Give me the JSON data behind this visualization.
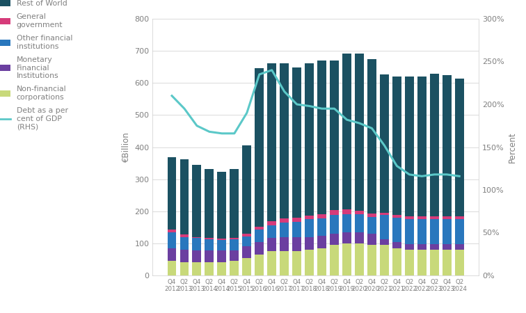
{
  "categories": [
    "2012 Q4",
    "2013 Q2",
    "2013 Q4",
    "2014 Q2",
    "2014 Q4",
    "2015 Q2",
    "2015 Q4",
    "2016 Q2",
    "2016 Q4",
    "2017 Q2",
    "2017 Q4",
    "2018 Q2",
    "2018 Q4",
    "2019 Q2",
    "2019 Q4",
    "2020 Q2",
    "2020 Q4",
    "2021 Q2",
    "2021 Q4",
    "2022 Q2",
    "2022 Q4",
    "2023 Q2",
    "2023 Q4",
    "2024 Q2"
  ],
  "nfc": [
    45,
    42,
    42,
    42,
    42,
    45,
    55,
    65,
    75,
    75,
    75,
    80,
    85,
    95,
    100,
    100,
    95,
    95,
    85,
    80,
    80,
    80,
    80,
    80
  ],
  "mfi": [
    40,
    38,
    36,
    35,
    35,
    33,
    35,
    40,
    42,
    45,
    45,
    40,
    38,
    35,
    35,
    35,
    35,
    18,
    18,
    18,
    18,
    18,
    18,
    18
  ],
  "ofi": [
    50,
    40,
    38,
    35,
    33,
    35,
    32,
    38,
    40,
    45,
    48,
    55,
    55,
    58,
    55,
    55,
    52,
    75,
    78,
    78,
    78,
    78,
    78,
    78
  ],
  "gg": [
    8,
    8,
    4,
    4,
    4,
    4,
    8,
    8,
    12,
    12,
    12,
    12,
    12,
    16,
    16,
    12,
    12,
    8,
    8,
    8,
    8,
    8,
    8,
    8
  ],
  "row": [
    225,
    235,
    225,
    215,
    210,
    215,
    275,
    495,
    492,
    485,
    468,
    475,
    480,
    465,
    485,
    490,
    480,
    430,
    430,
    435,
    435,
    445,
    440,
    430
  ],
  "gdp_pct": [
    210,
    195,
    175,
    168,
    166,
    166,
    190,
    235,
    240,
    215,
    200,
    198,
    195,
    195,
    182,
    178,
    172,
    152,
    128,
    118,
    116,
    118,
    118,
    116
  ],
  "color_nfc": "#c8d97a",
  "color_mfi": "#6b3fa0",
  "color_ofi": "#2977bd",
  "color_gg": "#d63b7a",
  "color_row": "#1b5162",
  "color_gdp": "#5bc8c8",
  "ylabel_left": "€Billion",
  "ylabel_right": "Percent",
  "ylim_left": [
    0,
    800
  ],
  "ylim_right": [
    0,
    300
  ],
  "yticks_left": [
    0,
    100,
    200,
    300,
    400,
    500,
    600,
    700,
    800
  ],
  "yticks_right": [
    0,
    50,
    100,
    150,
    200,
    250,
    300
  ],
  "ytick_labels_right": [
    "0%",
    "50%",
    "100%",
    "150%",
    "200%",
    "250%",
    "300%"
  ],
  "background_color": "#ffffff",
  "grid_color": "#cccccc",
  "text_color": "#808080"
}
